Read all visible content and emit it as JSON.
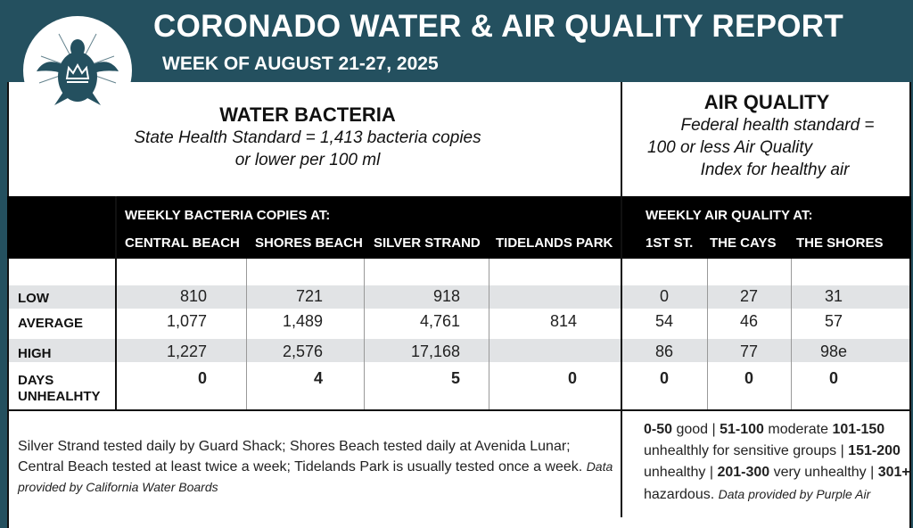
{
  "header": {
    "title": "CORONADO WATER & AIR QUALITY REPORT",
    "subtitle": "WEEK OF AUGUST 21-27, 2025",
    "logo": "turtle-crown-logo"
  },
  "colors": {
    "header_bg": "#24505f",
    "table_header_bg": "#000000",
    "stripe": "#e1e3e5"
  },
  "water": {
    "heading": "WATER BACTERIA",
    "standard": "State Health Standard  = 1,413 bacteria copies",
    "standard2": "or lower per 100 ml",
    "group_label": "WEEKLY BACTERIA COPIES AT:",
    "columns": [
      "CENTRAL BEACH",
      "SHORES BEACH",
      "SILVER STRAND",
      "TIDELANDS PARK"
    ]
  },
  "air": {
    "heading": "AIR QUALITY",
    "standard": "Federal health standard =",
    "standard2": "100 or less Air Quality",
    "standard3": "Index for healthy air",
    "group_label": "WEEKLY AIR QUALITY AT:",
    "columns": [
      "1ST ST.",
      "THE CAYS",
      "THE SHORES"
    ]
  },
  "rows": [
    {
      "label": "LOW",
      "water": [
        "810",
        "721",
        "918",
        ""
      ],
      "air": [
        "0",
        "27",
        "31"
      ]
    },
    {
      "label": "AVERAGE",
      "water": [
        "1,077",
        "1,489",
        "4,761",
        "814"
      ],
      "air": [
        "54",
        "46",
        "57"
      ]
    },
    {
      "label": "HIGH",
      "water": [
        "1,227",
        "2,576",
        "17,168",
        ""
      ],
      "air": [
        "86",
        "77",
        "98e"
      ]
    },
    {
      "label": "DAYS",
      "label2": "UNHEALHTY",
      "water": [
        "0",
        "4",
        "5",
        "0"
      ],
      "air": [
        "0",
        "0",
        "0"
      ]
    }
  ],
  "footer": {
    "water_note": "Silver Strand tested daily by Guard Shack; Shores Beach tested daily at Avenida Lunar; Central Beach tested at least twice a week; Tidelands Park is usually tested once a week.",
    "water_source": "Data provided by California Water Boards",
    "scale": [
      {
        "b": "0-50",
        "t": " good | "
      },
      {
        "b": "51-100",
        "t": " moderate "
      },
      {
        "b": "101-150",
        "t": " unhealthly for sensitive groups | "
      },
      {
        "b": "151-200",
        "t": " unhealthy | "
      },
      {
        "b": "201-300",
        "t": " very unhealthy | "
      },
      {
        "b": "301+",
        "t": " hazardous. "
      }
    ],
    "air_source": "Data provided by Purple Air"
  }
}
